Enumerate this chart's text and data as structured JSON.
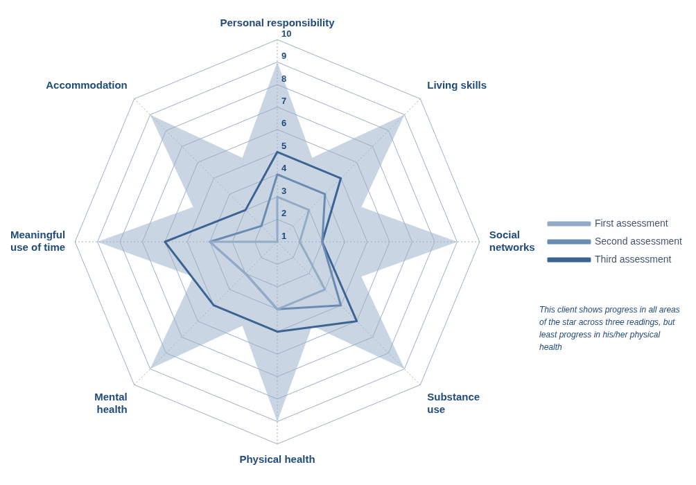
{
  "chart_data": {
    "type": "radar",
    "categories": [
      "Personal responsibility",
      "Living skills",
      "Social networks",
      "Substance use",
      "Physical health",
      "Mental health",
      "Meaningful use of time",
      "Accommodation"
    ],
    "series": [
      {
        "name": "First assessment",
        "color": "#93abc6",
        "values": [
          3,
          3,
          2,
          4,
          4,
          3,
          4,
          1
        ]
      },
      {
        "name": "Second assessment",
        "color": "#6a8cb2",
        "values": [
          4,
          4,
          3,
          5,
          4,
          3,
          4,
          2
        ]
      },
      {
        "name": "Third assessment",
        "color": "#3c6493",
        "values": [
          5,
          5,
          3,
          6,
          5,
          5,
          6,
          3
        ]
      }
    ],
    "ylim": [
      1,
      10
    ],
    "yticks": [
      1,
      2,
      3,
      4,
      5,
      6,
      7,
      8,
      9,
      10
    ],
    "grid": true,
    "legend": "right",
    "marker": "none",
    "line_style": "solid",
    "annotations": [
      "This client shows progress in all areas of the star across three readings, but least progress in his/her physical health"
    ]
  }
}
